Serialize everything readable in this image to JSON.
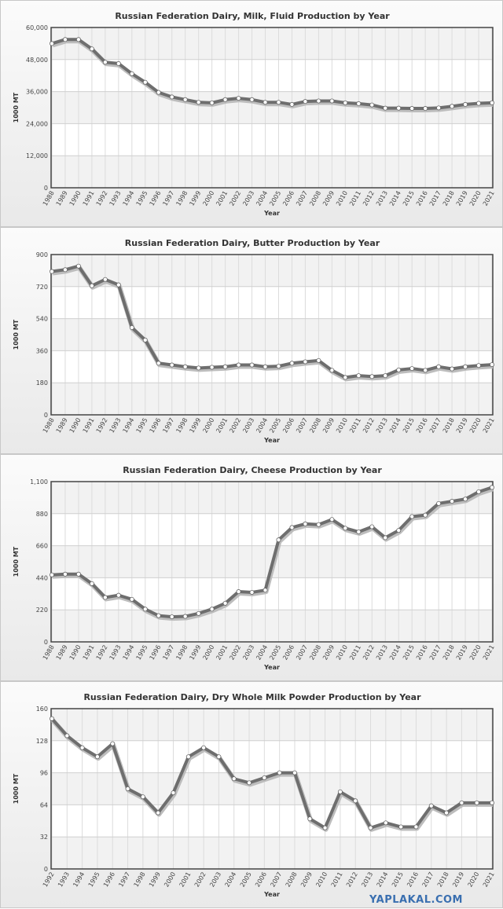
{
  "watermark": "YAPLAKAL.COM",
  "chart_data": [
    {
      "type": "line",
      "title": "Russian Federation Dairy, Milk, Fluid Production by Year",
      "xlabel": "Year",
      "ylabel": "1000 MT",
      "ylim": [
        0,
        60000
      ],
      "yticks": [
        "0",
        "12,000",
        "24,000",
        "36,000",
        "48,000",
        "60,000"
      ],
      "x": [
        "1988",
        "1989",
        "1990",
        "1991",
        "1992",
        "1993",
        "1994",
        "1995",
        "1996",
        "1997",
        "1998",
        "1999",
        "2000",
        "2001",
        "2002",
        "2003",
        "2004",
        "2005",
        "2006",
        "2007",
        "2008",
        "2009",
        "2010",
        "2011",
        "2012",
        "2013",
        "2014",
        "2015",
        "2016",
        "2017",
        "2018",
        "2019",
        "2020",
        "2021"
      ],
      "values": [
        54000,
        55500,
        55500,
        52000,
        47000,
        46500,
        42700,
        39500,
        35700,
        34000,
        33000,
        32000,
        31800,
        33000,
        33500,
        33000,
        32000,
        32000,
        31200,
        32300,
        32500,
        32500,
        31800,
        31500,
        31000,
        29800,
        29800,
        29700,
        29700,
        29900,
        30500,
        31200,
        31600,
        31800
      ],
      "grid": true,
      "legend": "none"
    },
    {
      "type": "line",
      "title": "Russian Federation Dairy, Butter Production by Year",
      "xlabel": "Year",
      "ylabel": "1000 MT",
      "ylim": [
        0,
        900
      ],
      "yticks": [
        "0",
        "180",
        "360",
        "540",
        "720",
        "900"
      ],
      "x": [
        "1988",
        "1989",
        "1990",
        "1991",
        "1992",
        "1993",
        "1994",
        "1995",
        "1996",
        "1997",
        "1998",
        "1999",
        "2000",
        "2001",
        "2002",
        "2003",
        "2004",
        "2005",
        "2006",
        "2007",
        "2008",
        "2009",
        "2010",
        "2011",
        "2012",
        "2013",
        "2014",
        "2015",
        "2016",
        "2017",
        "2018",
        "2019",
        "2020",
        "2021"
      ],
      "values": [
        805,
        815,
        835,
        725,
        760,
        730,
        490,
        420,
        290,
        280,
        270,
        263,
        267,
        270,
        280,
        280,
        270,
        273,
        290,
        298,
        305,
        250,
        210,
        220,
        215,
        220,
        252,
        260,
        250,
        270,
        258,
        270,
        277,
        282
      ],
      "grid": true,
      "legend": "none"
    },
    {
      "type": "line",
      "title": "Russian Federation Dairy, Cheese Production by Year",
      "xlabel": "Year",
      "ylabel": "1000 MT",
      "ylim": [
        0,
        1100
      ],
      "yticks": [
        "0",
        "220",
        "440",
        "660",
        "880",
        "1,100"
      ],
      "x": [
        "1988",
        "1989",
        "1990",
        "1991",
        "1992",
        "1993",
        "1994",
        "1995",
        "1996",
        "1997",
        "1998",
        "1999",
        "2000",
        "2001",
        "2002",
        "2003",
        "2004",
        "2005",
        "2006",
        "2007",
        "2008",
        "2009",
        "2010",
        "2011",
        "2012",
        "2013",
        "2014",
        "2015",
        "2016",
        "2017",
        "2018",
        "2019",
        "2020",
        "2021"
      ],
      "values": [
        460,
        465,
        465,
        400,
        305,
        320,
        292,
        225,
        180,
        172,
        175,
        195,
        225,
        265,
        345,
        340,
        355,
        700,
        785,
        810,
        805,
        840,
        780,
        755,
        790,
        715,
        765,
        860,
        870,
        950,
        965,
        980,
        1030,
        1060
      ],
      "grid": true,
      "legend": "none"
    },
    {
      "type": "line",
      "title": "Russian Federation Dairy, Dry Whole Milk Powder Production by Year",
      "xlabel": "Year",
      "ylabel": "1000 MT",
      "ylim": [
        0,
        160
      ],
      "yticks": [
        "0",
        "32",
        "64",
        "96",
        "128",
        "160"
      ],
      "x": [
        "1992",
        "1993",
        "1994",
        "1995",
        "1996",
        "1997",
        "1998",
        "1999",
        "2000",
        "2001",
        "2002",
        "2003",
        "2004",
        "2005",
        "2006",
        "2007",
        "2008",
        "2009",
        "2010",
        "2011",
        "2012",
        "2013",
        "2014",
        "2015",
        "2016",
        "2017",
        "2018",
        "2019",
        "2020",
        "2021"
      ],
      "values": [
        150,
        133,
        121,
        112,
        125,
        80,
        72,
        56,
        76,
        112,
        121,
        112,
        90,
        86,
        91,
        96,
        96,
        50,
        41,
        77,
        68,
        41,
        46,
        42,
        42,
        63,
        56,
        66,
        66,
        66
      ],
      "grid": true,
      "legend": "none"
    }
  ]
}
